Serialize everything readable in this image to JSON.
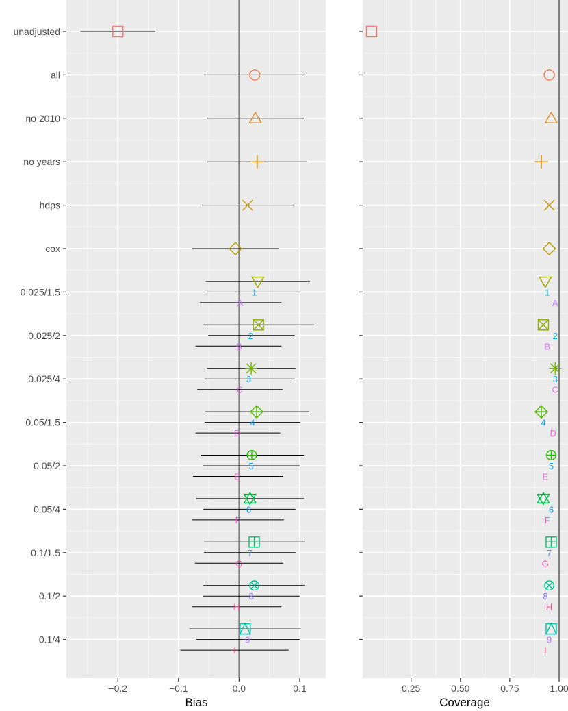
{
  "chart_data": {
    "type": "scatter",
    "subtype": "forest-plot",
    "panels": [
      {
        "id": "bias",
        "xlabel": "Bias",
        "xlim": [
          -0.285,
          0.143
        ],
        "xticks": [
          -0.2,
          -0.1,
          0.0,
          0.1
        ],
        "xtick_labels": [
          "−0.2",
          "−0.1",
          "0.0",
          "0.1"
        ],
        "reference_line": 0,
        "has_error_bars": true
      },
      {
        "id": "coverage",
        "xlabel": "Coverage",
        "xlim": [
          0.005,
          1.045
        ],
        "xticks": [
          0.25,
          0.5,
          0.75,
          1.0
        ],
        "xtick_labels": [
          "0.25",
          "0.50",
          "0.75",
          "1.00"
        ],
        "reference_line": 1.0,
        "has_error_bars": false
      }
    ],
    "categories": [
      "unadjusted",
      "all",
      "no 2010",
      "no years",
      "hdps",
      "cox",
      "0.025/1.5",
      "0.025/2",
      "0.025/4",
      "0.05/1.5",
      "0.05/2",
      "0.05/4",
      "0.1/1.5",
      "0.1/2",
      "0.1/4"
    ],
    "series": [
      {
        "name": "unadjusted",
        "category": "unadjusted",
        "offset": 0,
        "symbol": "square",
        "color": "#F8766D",
        "bias": -0.2,
        "ci": [
          -0.262,
          -0.138
        ],
        "coverage": 0.05
      },
      {
        "name": "all",
        "category": "all",
        "offset": 0,
        "symbol": "circle",
        "color": "#EE7E4A",
        "bias": 0.026,
        "ci": [
          -0.058,
          0.11
        ],
        "coverage": 0.95
      },
      {
        "name": "no 2010",
        "category": "no 2010",
        "offset": 0,
        "symbol": "triangle",
        "color": "#E2871F",
        "bias": 0.027,
        "ci": [
          -0.053,
          0.107
        ],
        "coverage": 0.96
      },
      {
        "name": "no years",
        "category": "no years",
        "offset": 0,
        "symbol": "plus",
        "color": "#D89000",
        "bias": 0.03,
        "ci": [
          -0.052,
          0.112
        ],
        "coverage": 0.91
      },
      {
        "name": "hdps",
        "category": "hdps",
        "offset": 0,
        "symbol": "cross",
        "color": "#C99800",
        "bias": 0.014,
        "ci": [
          -0.061,
          0.09
        ],
        "coverage": 0.95
      },
      {
        "name": "cox",
        "category": "cox",
        "offset": 0,
        "symbol": "diamond",
        "color": "#B79F00",
        "bias": -0.006,
        "ci": [
          -0.078,
          0.066
        ],
        "coverage": 0.95
      },
      {
        "name": "0.025/1.5",
        "category": "0.025/1.5",
        "offset": -1,
        "symbol": "triangle-down",
        "color": "#A3A500",
        "bias": 0.031,
        "ci": [
          -0.055,
          0.117
        ],
        "coverage": 0.93
      },
      {
        "name": "1",
        "category": "0.025/1.5",
        "offset": 0,
        "symbol": "text",
        "color": "#00B9E3",
        "bias": 0.025,
        "ci": [
          -0.052,
          0.102
        ],
        "coverage": 0.94
      },
      {
        "name": "A",
        "category": "0.025/1.5",
        "offset": 1,
        "symbol": "text",
        "color": "#C77CFF",
        "bias": 0.002,
        "ci": [
          -0.065,
          0.07
        ],
        "coverage": 0.98
      },
      {
        "name": "0.025/2",
        "category": "0.025/2",
        "offset": -1,
        "symbol": "square-x",
        "color": "#8EAB00",
        "bias": 0.032,
        "ci": [
          -0.059,
          0.124
        ],
        "coverage": 0.92
      },
      {
        "name": "2",
        "category": "0.025/2",
        "offset": 0,
        "symbol": "text",
        "color": "#00B3EB",
        "bias": 0.019,
        "ci": [
          -0.051,
          0.092
        ],
        "coverage": 0.98
      },
      {
        "name": "B",
        "category": "0.025/2",
        "offset": 1,
        "symbol": "text",
        "color": "#D573F5",
        "bias": 0.0,
        "ci": [
          -0.072,
          0.07
        ],
        "coverage": 0.94
      },
      {
        "name": "0.025/4",
        "category": "0.025/4",
        "offset": -1,
        "symbol": "asterisk",
        "color": "#74B100",
        "bias": 0.02,
        "ci": [
          -0.053,
          0.093
        ],
        "coverage": 0.98
      },
      {
        "name": "3",
        "category": "0.025/4",
        "offset": 0,
        "symbol": "text",
        "color": "#00ACF2",
        "bias": 0.016,
        "ci": [
          -0.057,
          0.092
        ],
        "coverage": 0.98
      },
      {
        "name": "C",
        "category": "0.025/4",
        "offset": 1,
        "symbol": "text",
        "color": "#E16AEA",
        "bias": 0.001,
        "ci": [
          -0.069,
          0.072
        ],
        "coverage": 0.98
      },
      {
        "name": "0.05/1.5",
        "category": "0.05/1.5",
        "offset": -1,
        "symbol": "diamond-plus",
        "color": "#56B600",
        "bias": 0.029,
        "ci": [
          -0.056,
          0.116
        ],
        "coverage": 0.91
      },
      {
        "name": "4",
        "category": "0.05/1.5",
        "offset": 0,
        "symbol": "text",
        "color": "#00A4F8",
        "bias": 0.022,
        "ci": [
          -0.057,
          0.101
        ],
        "coverage": 0.92
      },
      {
        "name": "D",
        "category": "0.05/1.5",
        "offset": 1,
        "symbol": "text",
        "color": "#EB62DE",
        "bias": -0.003,
        "ci": [
          -0.072,
          0.068
        ],
        "coverage": 0.97
      },
      {
        "name": "0.05/2",
        "category": "0.05/2",
        "offset": -1,
        "symbol": "circle-plus",
        "color": "#26BA00",
        "bias": 0.021,
        "ci": [
          -0.063,
          0.107
        ],
        "coverage": 0.96
      },
      {
        "name": "5",
        "category": "0.05/2",
        "offset": 0,
        "symbol": "text",
        "color": "#009BFD",
        "bias": 0.02,
        "ci": [
          -0.06,
          0.1
        ],
        "coverage": 0.96
      },
      {
        "name": "E",
        "category": "0.05/2",
        "offset": 1,
        "symbol": "text",
        "color": "#F35BD0",
        "bias": -0.003,
        "ci": [
          -0.076,
          0.073
        ],
        "coverage": 0.93
      },
      {
        "name": "0.05/4",
        "category": "0.05/4",
        "offset": -1,
        "symbol": "star-of-david",
        "color": "#00BD46",
        "bias": 0.018,
        "ci": [
          -0.071,
          0.107
        ],
        "coverage": 0.92
      },
      {
        "name": "6",
        "category": "0.05/4",
        "offset": 0,
        "symbol": "text",
        "color": "#0090FF",
        "bias": 0.016,
        "ci": [
          -0.059,
          0.093
        ],
        "coverage": 0.96
      },
      {
        "name": "F",
        "category": "0.05/4",
        "offset": 1,
        "symbol": "text",
        "color": "#F953C1",
        "bias": -0.002,
        "ci": [
          -0.078,
          0.074
        ],
        "coverage": 0.94
      },
      {
        "name": "0.1/1.5",
        "category": "0.1/1.5",
        "offset": -1,
        "symbol": "square-plus",
        "color": "#00BF71",
        "bias": 0.025,
        "ci": [
          -0.058,
          0.108
        ],
        "coverage": 0.96
      },
      {
        "name": "7",
        "category": "0.1/1.5",
        "offset": 0,
        "symbol": "text",
        "color": "#5E84FF",
        "bias": 0.018,
        "ci": [
          -0.058,
          0.093
        ],
        "coverage": 0.95
      },
      {
        "name": "G",
        "category": "0.1/1.5",
        "offset": 1,
        "symbol": "text",
        "color": "#FD4DB0",
        "bias": 0.0,
        "ci": [
          -0.073,
          0.073
        ],
        "coverage": 0.93
      },
      {
        "name": "0.1/2",
        "category": "0.1/2",
        "offset": -1,
        "symbol": "circle-x",
        "color": "#00C190",
        "bias": 0.025,
        "ci": [
          -0.059,
          0.108
        ],
        "coverage": 0.95
      },
      {
        "name": "8",
        "category": "0.1/2",
        "offset": 0,
        "symbol": "text",
        "color": "#8B78FF",
        "bias": 0.02,
        "ci": [
          -0.06,
          0.1
        ],
        "coverage": 0.93
      },
      {
        "name": "H",
        "category": "0.1/2",
        "offset": 1,
        "symbol": "text",
        "color": "#FF479E",
        "bias": -0.004,
        "ci": [
          -0.078,
          0.07
        ],
        "coverage": 0.95
      },
      {
        "name": "0.1/4",
        "category": "0.1/4",
        "offset": -1,
        "symbol": "square-triangle",
        "color": "#00C1A9",
        "bias": 0.01,
        "ci": [
          -0.082,
          0.102
        ],
        "coverage": 0.96
      },
      {
        "name": "9",
        "category": "0.1/4",
        "offset": 0,
        "symbol": "text",
        "color": "#AA6FFF",
        "bias": 0.014,
        "ci": [
          -0.071,
          0.1
        ],
        "coverage": 0.95
      },
      {
        "name": "I",
        "category": "0.1/4",
        "offset": 1,
        "symbol": "text",
        "color": "#FF4389",
        "bias": -0.007,
        "ci": [
          -0.097,
          0.082
        ],
        "coverage": 0.93
      }
    ],
    "grid": true,
    "legend": "none"
  }
}
